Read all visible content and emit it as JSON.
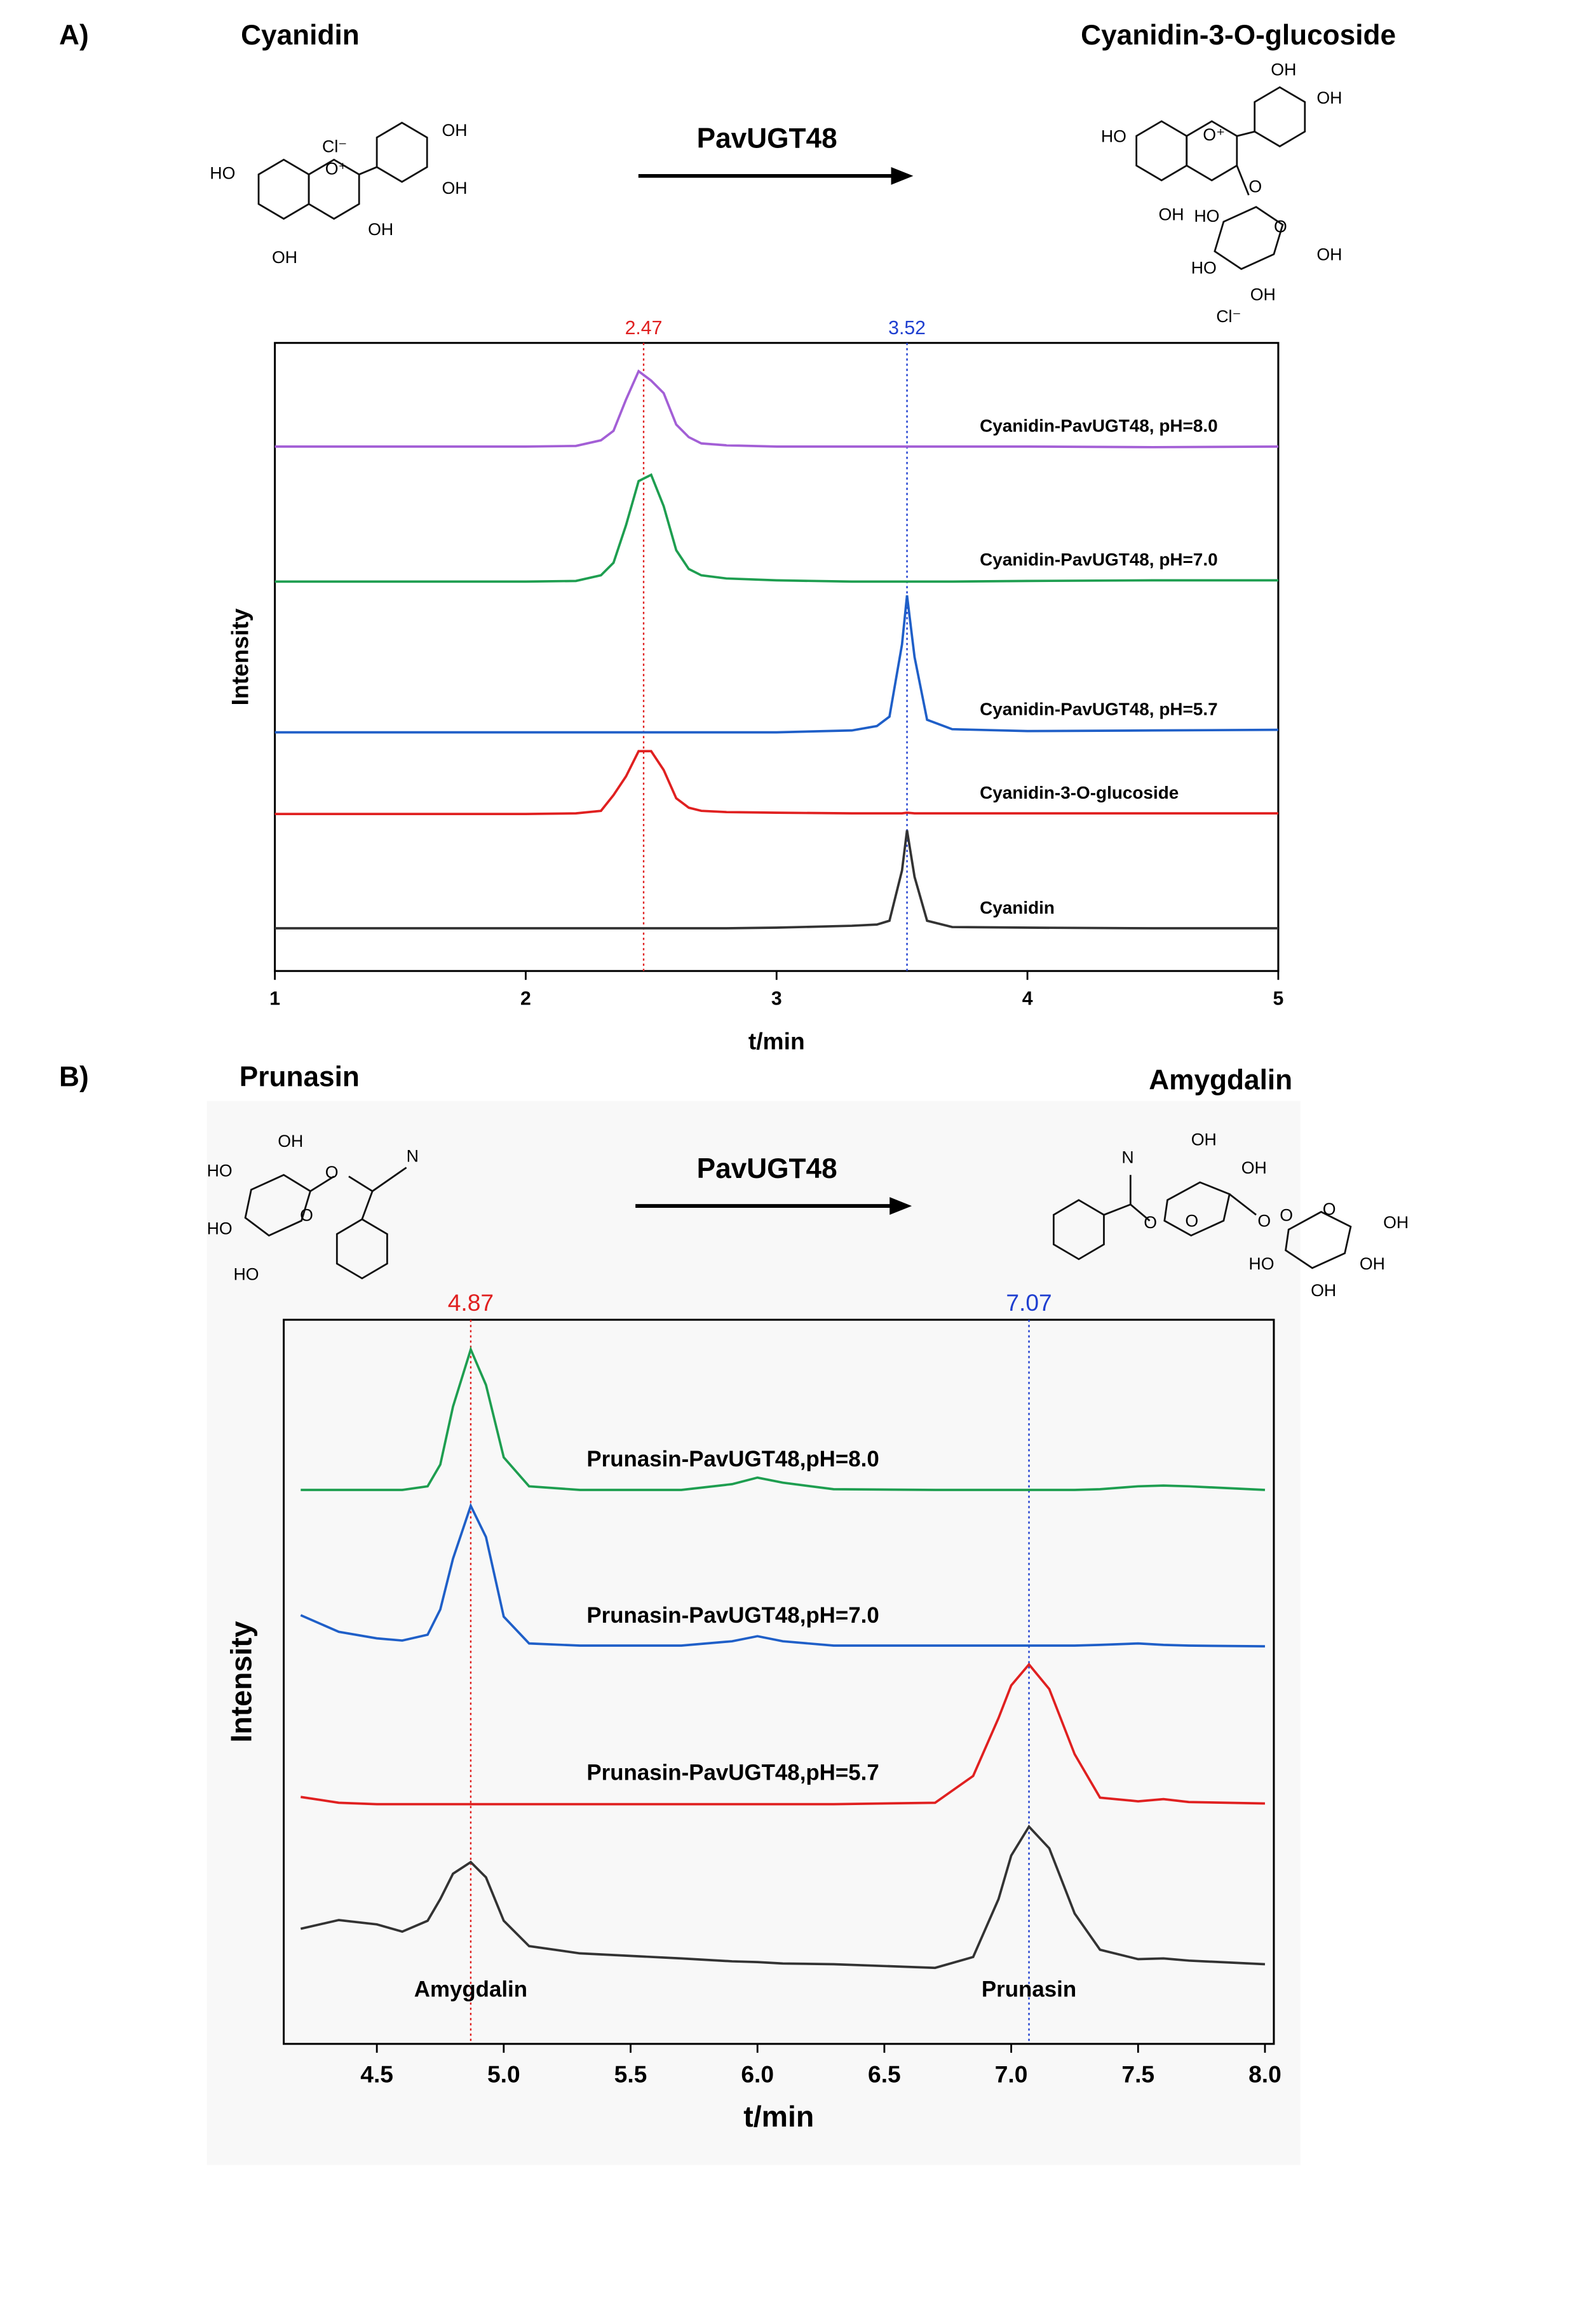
{
  "panels": [
    {
      "label": "A)",
      "reactant": "Cyanidin",
      "enzyme": "PavUGT48",
      "product": "Cyanidin-3-O-glucoside",
      "reactant_atoms": [
        "HO",
        "O⁺",
        "Cl⁻",
        "OH",
        "OH",
        "OH",
        "OH"
      ],
      "product_atoms": [
        "HO",
        "O⁺",
        "OH",
        "OH",
        "O",
        "OH",
        "HO",
        "HO",
        "OH",
        "OH",
        "O",
        "Cl⁻"
      ]
    },
    {
      "label": "B)",
      "reactant": "Prunasin",
      "enzyme": "PavUGT48",
      "product": "Amygdalin",
      "reactant_atoms": [
        "OH",
        "HO",
        "O",
        "N",
        "HO",
        "O",
        "HO"
      ],
      "product_atoms": [
        "N",
        "OH",
        "OH",
        "O",
        "O",
        "O",
        "OH",
        "HO",
        "OH",
        "OH",
        "O",
        "O"
      ]
    }
  ],
  "chart_data": [
    {
      "type": "line",
      "xlabel": "t/min",
      "ylabel": "Intensity",
      "xlim": [
        1,
        5
      ],
      "ylim": [
        0,
        100
      ],
      "xticks": [
        1,
        2,
        3,
        4,
        5
      ],
      "x": [
        1,
        1.5,
        2,
        2.2,
        2.3,
        2.35,
        2.4,
        2.45,
        2.5,
        2.55,
        2.6,
        2.65,
        2.7,
        2.8,
        3,
        3.3,
        3.4,
        3.45,
        3.5,
        3.52,
        3.55,
        3.6,
        3.7,
        4,
        4.5,
        5
      ],
      "vlines": [
        {
          "x": 2.47,
          "color": "#e02020"
        },
        {
          "x": 3.52,
          "color": "#1f3fd0"
        }
      ],
      "series": [
        {
          "name": "Cyanidin-PavUGT48, pH=8.0",
          "color": "#a35fd6",
          "values": [
            83.5,
            83.5,
            83.5,
            83.6,
            84.5,
            86,
            91,
            95.5,
            94,
            92,
            87,
            85,
            84,
            83.7,
            83.5,
            83.5,
            83.5,
            83.5,
            83.5,
            83.5,
            83.5,
            83.5,
            83.5,
            83.5,
            83.4,
            83.5
          ]
        },
        {
          "name": "Cyanidin-PavUGT48, pH=7.0",
          "color": "#1e9e50",
          "values": [
            62,
            62,
            62,
            62.1,
            63,
            65,
            71,
            78,
            79,
            74,
            67,
            64,
            63,
            62.5,
            62.2,
            62,
            62,
            62,
            62,
            62,
            62,
            62,
            62,
            62.1,
            62.2,
            62.2
          ]
        },
        {
          "name": "Cyanidin-PavUGT48, pH=5.7",
          "color": "#1f5fc8",
          "values": [
            38,
            38,
            38,
            38,
            38,
            38,
            38,
            38,
            38,
            38,
            38,
            38,
            38,
            38,
            38,
            38.3,
            39,
            40.5,
            52,
            59.8,
            50,
            40,
            38.5,
            38.2,
            38.3,
            38.4
          ]
        },
        {
          "name": "Cyanidin-3-O-glucoside",
          "color": "#e02020",
          "values": [
            25,
            25,
            25,
            25.1,
            25.5,
            28,
            31,
            35,
            35,
            32,
            27.5,
            26,
            25.5,
            25.3,
            25.2,
            25.1,
            25.1,
            25.1,
            25.1,
            25.2,
            25.1,
            25.1,
            25.1,
            25.1,
            25.1,
            25.1
          ]
        },
        {
          "name": "Cyanidin",
          "color": "#333333",
          "values": [
            6.8,
            6.8,
            6.8,
            6.8,
            6.8,
            6.8,
            6.8,
            6.8,
            6.8,
            6.8,
            6.8,
            6.8,
            6.8,
            6.8,
            6.9,
            7.2,
            7.4,
            8,
            16,
            22.4,
            15,
            8,
            7,
            6.9,
            6.8,
            6.8
          ]
        }
      ]
    },
    {
      "type": "line",
      "xlabel": "t/min",
      "ylabel": "Intensity",
      "xlim": [
        4.133,
        8.035
      ],
      "ylim": [
        0,
        100
      ],
      "xticks": [
        4.5,
        {
          "value": 5,
          "label": "5.0"
        },
        5.5,
        {
          "value": 6,
          "label": "6.0"
        },
        6.5,
        {
          "value": 7,
          "label": "7.0"
        },
        7.5,
        {
          "value": 8,
          "label": "8.0"
        }
      ],
      "x": [
        4.2,
        4.35,
        4.5,
        4.6,
        4.7,
        4.75,
        4.8,
        4.87,
        4.93,
        5.0,
        5.1,
        5.3,
        5.7,
        5.9,
        6.0,
        6.1,
        6.3,
        6.7,
        6.85,
        6.95,
        7.0,
        7.07,
        7.15,
        7.25,
        7.35,
        7.5,
        7.6,
        7.7,
        8.0
      ],
      "vlines": [
        {
          "x": 4.87,
          "color": "#e02020",
          "peak_label": "Amygdalin"
        },
        {
          "x": 7.07,
          "color": "#1f3fd0",
          "peak_label": "Prunasin"
        }
      ],
      "series": [
        {
          "name": "Prunasin-PavUGT48,pH=8.0",
          "color": "#1e9e50",
          "values": [
            76.5,
            76.5,
            76.5,
            76.5,
            77,
            80,
            88,
            95.9,
            91,
            81,
            77,
            76.5,
            76.5,
            77.3,
            78.2,
            77.5,
            76.6,
            76.5,
            76.5,
            76.5,
            76.5,
            76.5,
            76.5,
            76.5,
            76.6,
            77,
            77.1,
            77,
            76.5
          ]
        },
        {
          "name": "Prunasin-PavUGT48,pH=7.0",
          "color": "#1f5fc8",
          "values": [
            59.2,
            56.9,
            56,
            55.7,
            56.5,
            60,
            67,
            74.3,
            70,
            59,
            55.3,
            55,
            55,
            55.6,
            56.3,
            55.6,
            55,
            55,
            55,
            55,
            55,
            55,
            55,
            55,
            55.1,
            55.3,
            55.1,
            55,
            54.9
          ]
        },
        {
          "name": "Prunasin-PavUGT48,pH=5.7",
          "color": "#e02020",
          "values": [
            34.1,
            33.3,
            33.1,
            33.1,
            33.1,
            33.1,
            33.1,
            33.1,
            33.1,
            33.1,
            33.1,
            33.1,
            33.1,
            33.1,
            33.1,
            33.1,
            33.1,
            33.3,
            37,
            45,
            49.5,
            52.4,
            49,
            40,
            34,
            33.5,
            33.8,
            33.4,
            33.2
          ]
        },
        {
          "color": "#333333",
          "values": [
            15.9,
            17.1,
            16.5,
            15.5,
            17,
            20,
            23.5,
            25.1,
            23,
            17,
            13.5,
            12.5,
            11.8,
            11.4,
            11.3,
            11.1,
            11,
            10.5,
            12,
            20,
            26,
            30,
            27,
            18,
            13,
            11.7,
            11.8,
            11.5,
            11
          ]
        }
      ]
    }
  ]
}
